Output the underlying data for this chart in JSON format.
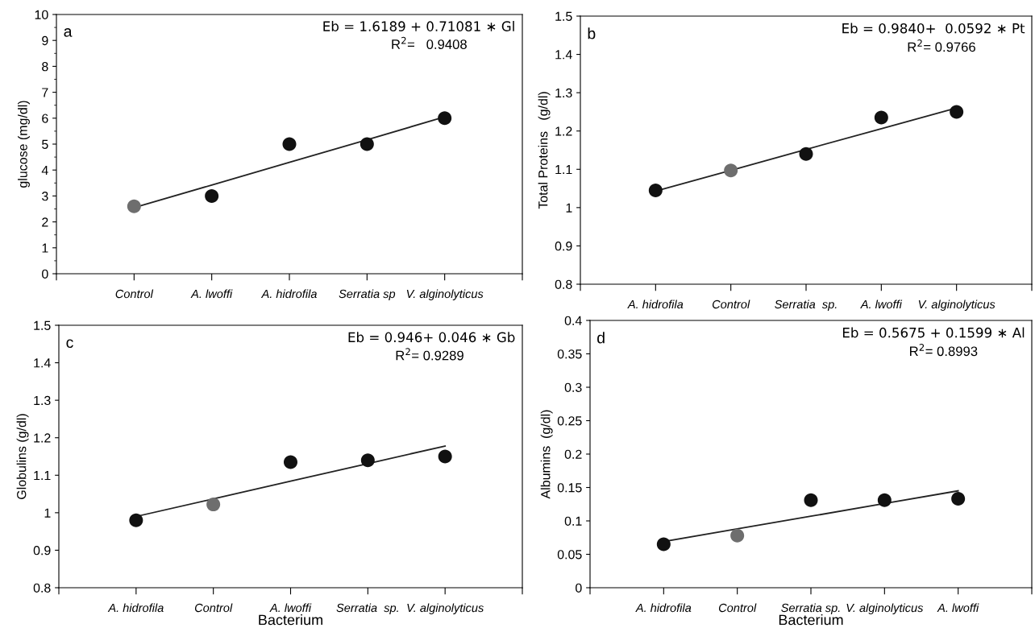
{
  "chart_data": [
    {
      "type": "scatter",
      "ylabel": "glucose (mg/dl)",
      "categories": [
        "Control",
        "A. lwoffi",
        "A. hidrofila",
        "Serratia sp",
        "V. alginolyticus"
      ],
      "ylim": [
        0,
        10
      ],
      "yticks": [
        0,
        1,
        2,
        3,
        4,
        5,
        6,
        7,
        8,
        9,
        10
      ],
      "grid": false,
      "marker": "circle",
      "annotations": [
        "a",
        "Eb = 1.6189 + 0.71081 ∗ Gl",
        "R$^{2}$=   0.9408"
      ],
      "series": [
        {
          "colors": [
            "#6e6e6e",
            "#111111",
            "#111111",
            "#111111",
            "#111111"
          ],
          "values": [
            2.6,
            3.0,
            5.0,
            5.0,
            6.0
          ]
        },
        {
          "type": "line",
          "marker": "none",
          "color": "#222222",
          "values": [
            2.55,
            3.42,
            4.3,
            5.17,
            6.05
          ]
        }
      ]
    },
    {
      "type": "scatter",
      "ylabel": "Total Proteins   (g/dl)",
      "categories": [
        "A. hidrofila",
        "Control",
        "Serratia  sp.",
        "A. lwoffi",
        "V. alginolyticus"
      ],
      "ylim": [
        0.8,
        1.5
      ],
      "yticks": [
        {
          "value": 0.8,
          "label": "0.8"
        },
        {
          "value": 0.9,
          "label": "0.9"
        },
        {
          "value": 1.0,
          "label": "1"
        },
        {
          "value": 1.1,
          "label": "1.1"
        },
        {
          "value": 1.2,
          "label": "1.2"
        },
        {
          "value": 1.3,
          "label": "1.3"
        },
        {
          "value": 1.4,
          "label": "1.4"
        },
        {
          "value": 1.5,
          "label": "1.5"
        }
      ],
      "grid": false,
      "marker": "circle",
      "annotations": [
        "b",
        "Eb = 0.9840+  0.0592 ∗ Pt",
        "R$^{2}$= 0.9766"
      ],
      "series": [
        {
          "colors": [
            "#111111",
            "#6e6e6e",
            "#111111",
            "#111111",
            "#111111"
          ],
          "values": [
            1.045,
            1.097,
            1.14,
            1.235,
            1.25
          ]
        },
        {
          "type": "line",
          "marker": "none",
          "color": "#222222",
          "values": [
            1.043,
            1.097,
            1.152,
            1.206,
            1.26
          ]
        }
      ]
    },
    {
      "type": "scatter",
      "xlabel": "Bacterium",
      "ylabel": "Globulins (g/dl)",
      "categories": [
        "A. hidrofila",
        "Control",
        "A. lwoffi",
        "Serratia  sp.",
        "V. alginolyticus"
      ],
      "ylim": [
        0.8,
        1.5
      ],
      "yticks": [
        {
          "value": 0.8,
          "label": "0.8"
        },
        {
          "value": 0.9,
          "label": "0.9"
        },
        {
          "value": 1.0,
          "label": "1"
        },
        {
          "value": 1.1,
          "label": "1.1"
        },
        {
          "value": 1.2,
          "label": "1.2"
        },
        {
          "value": 1.3,
          "label": "1.3"
        },
        {
          "value": 1.4,
          "label": "1.4"
        },
        {
          "value": 1.5,
          "label": "1.5"
        }
      ],
      "grid": false,
      "marker": "circle",
      "annotations": [
        "c",
        "Eb = 0.946+ 0.046 ∗ Gb",
        "R$^{2}$= 0.9289"
      ],
      "series": [
        {
          "colors": [
            "#111111",
            "#6e6e6e",
            "#111111",
            "#111111",
            "#111111"
          ],
          "values": [
            0.98,
            1.022,
            1.135,
            1.14,
            1.15
          ]
        },
        {
          "type": "line",
          "marker": "none",
          "color": "#222222",
          "values": [
            0.99,
            1.037,
            1.084,
            1.131,
            1.178
          ]
        }
      ]
    },
    {
      "type": "scatter",
      "xlabel": "Bacterium",
      "ylabel": "Albumins  (g/dl)",
      "categories": [
        "A. hidrofila",
        "Control",
        "Serratia sp.",
        "V. alginolyticus",
        "A. lwoffi"
      ],
      "ylim": [
        0,
        0.4
      ],
      "yticks": [
        0,
        0.05,
        0.1,
        0.15,
        0.2,
        0.25,
        0.3,
        0.35,
        0.4
      ],
      "grid": false,
      "marker": "circle",
      "annotations": [
        "d",
        "Eb = 0.5675 + 0.1599 ∗ Al",
        "R$^{2}$= 0.8993"
      ],
      "series": [
        {
          "colors": [
            "#111111",
            "#6e6e6e",
            "#111111",
            "#111111",
            "#111111"
          ],
          "values": [
            0.065,
            0.078,
            0.131,
            0.131,
            0.133
          ]
        },
        {
          "type": "line",
          "marker": "none",
          "color": "#222222",
          "values": [
            0.069,
            0.088,
            0.107,
            0.126,
            0.145
          ]
        }
      ]
    }
  ]
}
